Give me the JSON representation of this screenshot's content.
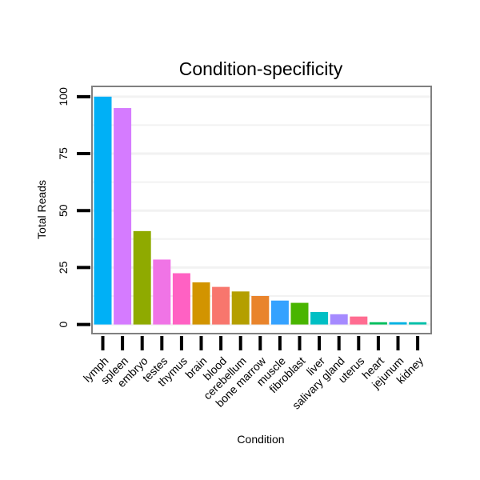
{
  "chart_data": {
    "type": "bar",
    "title": "Condition-specificity",
    "xlabel": "Condition",
    "ylabel": "Total Reads",
    "ylim": [
      -4,
      104.5
    ],
    "yticks": [
      0,
      25,
      50,
      75,
      100
    ],
    "grid": true,
    "legend": "none",
    "categories": [
      "lymph",
      "spleen",
      "embryo",
      "testes",
      "thymus",
      "brain",
      "blood",
      "cerebellum",
      "bone marrow",
      "muscle",
      "fibroblast",
      "liver",
      "salivary gland",
      "uterus",
      "heart",
      "jejunum",
      "kidney"
    ],
    "values": [
      100,
      95,
      41,
      28.5,
      22.5,
      18.5,
      16.5,
      14.5,
      12.5,
      10.5,
      9.5,
      5.5,
      4.5,
      3.5,
      1,
      1,
      1
    ],
    "colors": [
      "#00B0F6",
      "#D57BFF",
      "#8FAA00",
      "#F074E6",
      "#FF61C3",
      "#D29400",
      "#F8766D",
      "#B49F00",
      "#E9842C",
      "#35A2FF",
      "#49B500",
      "#00BFC4",
      "#A58AFF",
      "#FF6C91",
      "#00BD5C",
      "#00B2E2",
      "#00BFA8"
    ]
  }
}
